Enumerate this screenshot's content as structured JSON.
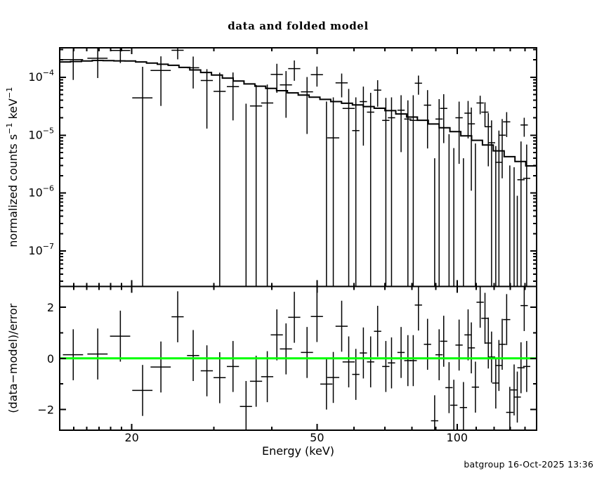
{
  "title": "data and folded model",
  "footer": "batgroup 16-Oct-2025 13:36",
  "colors": {
    "foreground": "#000000",
    "background": "#ffffff",
    "zero_line": "#00ff00"
  },
  "axes": {
    "x": {
      "label": "Energy (keV)",
      "scale": "log",
      "range": [
        14.0,
        148.2
      ],
      "major_ticks": [
        20,
        50,
        100
      ],
      "major_tick_labels": [
        "20",
        "50",
        "100"
      ],
      "minor_ticks": [
        15,
        16,
        17,
        18,
        19,
        30,
        40,
        60,
        70,
        80,
        90,
        110,
        120,
        130,
        140
      ]
    },
    "y_top": {
      "label_parts": [
        [
          "normalized counts s",
          false
        ],
        [
          "−1",
          true
        ],
        [
          " keV",
          false
        ],
        [
          "−1",
          true
        ]
      ],
      "scale": "log",
      "range_exponents": [
        -3.491,
        -7.612
      ],
      "major_tick_exponents": [
        -4,
        -5,
        -6,
        -7
      ],
      "tick_label_base": "10"
    },
    "y_bottom": {
      "label": "(data−model)/error",
      "scale": "linear",
      "range": [
        -2.82,
        2.82
      ],
      "ticks": [
        -2,
        -1,
        0,
        1,
        2
      ],
      "labeled_ticks": [
        -2,
        0,
        2
      ],
      "labeled_tick_text": [
        "−2",
        "0",
        "2"
      ]
    }
  },
  "chart_data": [
    {
      "type": "line",
      "name": "folded model histogram",
      "x_bin_edges_kev": [
        14.0,
        14.77,
        15.59,
        16.45,
        17.35,
        18.31,
        19.32,
        20.38,
        21.51,
        22.69,
        23.94,
        25.26,
        26.65,
        28.12,
        29.67,
        31.31,
        33.03,
        34.85,
        36.77,
        38.8,
        40.94,
        43.19,
        45.57,
        48.08,
        50.73,
        53.52,
        56.47,
        59.58,
        62.87,
        66.33,
        69.98,
        73.84,
        77.9,
        82.19,
        86.72,
        91.5,
        96.53,
        101.85,
        107.46,
        113.38,
        119.62,
        126.21,
        133.16,
        140.49,
        148.23
      ],
      "model_counts": [
        0.000184,
        0.000187,
        0.000191,
        0.000195,
        0.000194,
        0.000192,
        0.000191,
        0.000184,
        0.000176,
        0.000168,
        0.000161,
        0.000148,
        0.000134,
        0.000121,
        0.000109,
        9.68e-05,
        8.62e-05,
        7.68e-05,
        7.01e-05,
        6.41e-05,
        5.87e-05,
        5.38e-05,
        4.93e-05,
        4.52e-05,
        4.15e-05,
        3.81e-05,
        3.56e-05,
        3.33e-05,
        3.12e-05,
        2.92e-05,
        2.65e-05,
        2.33e-05,
        2.06e-05,
        1.81e-05,
        1.56e-05,
        1.34e-05,
        1.15e-05,
        9.72e-06,
        8.15e-06,
        6.76e-06,
        5.36e-06,
        4.25e-06,
        3.52e-06,
        2.95e-06
      ]
    },
    {
      "type": "scatter",
      "name": "spectrum data points with error bars",
      "halfwidth_rule": {
        "breaks_kev": [
          25,
          60
        ],
        "fracs": [
          0.05,
          0.03,
          0.018
        ]
      },
      "e_kev": [
        14.97,
        16.9,
        18.9,
        21.1,
        23.1,
        25.1,
        27.1,
        29.0,
        30.9,
        33.0,
        35.2,
        37.0,
        39.1,
        41.0,
        42.9,
        44.7,
        47.6,
        50.0,
        52.4,
        54.2,
        56.5,
        58.5,
        60.6,
        62.9,
        65.2,
        67.5,
        70.3,
        72.3,
        75.8,
        78.4,
        80.5,
        82.6,
        86.4,
        89.5,
        91.5,
        93.6,
        96.1,
        98.4,
        101.0,
        103.2,
        105.6,
        107.3,
        109.5,
        112.1,
        114.8,
        116.7,
        118.6,
        121.1,
        123.0,
        125.0,
        127.8,
        129.8,
        132.6,
        134.7,
        137.2,
        139.4,
        141.1
      ],
      "y": [
        0.000202,
        0.000213,
        0.000291,
        4.4e-05,
        0.000131,
        0.000293,
        0.000146,
        8.8e-05,
        5.7e-05,
        6.9e-05,
        null,
        3.2e-05,
        3.6e-05,
        0.000112,
        7.4e-05,
        0.000141,
        5.6e-05,
        0.000111,
        null,
        9e-06,
        8e-05,
        2.9e-05,
        1.2e-05,
        3.8e-05,
        2.5e-05,
        6e-05,
        1.8e-05,
        2e-05,
        2.7e-05,
        1.9e-05,
        1.8e-05,
        7.9e-05,
        3.3e-05,
        null,
        1.9e-05,
        2.9e-05,
        null,
        null,
        2e-05,
        null,
        2.4e-05,
        1.57e-05,
        null,
        3.6e-05,
        2.5e-05,
        1.4e-05,
        7.4e-06,
        null,
        3.4e-06,
        1e-05,
        1.7e-05,
        null,
        null,
        null,
        1.7e-06,
        1.5e-05,
        1.8e-06
      ],
      "y_lo": [
        9e-05,
        9.7e-05,
        0.000176,
        null,
        3.2e-05,
        0.000204,
        6.4e-05,
        1.3e-05,
        null,
        1.8e-05,
        null,
        null,
        null,
        5.4e-05,
        2e-05,
        8.7e-05,
        1.05e-05,
        6.9e-05,
        null,
        null,
        4.5e-05,
        null,
        null,
        6.6e-06,
        null,
        3.1e-05,
        null,
        null,
        5.1e-06,
        null,
        null,
        5e-05,
        5.9e-06,
        null,
        null,
        7.3e-06,
        null,
        null,
        3.2e-06,
        null,
        8.8e-06,
        1.1e-06,
        null,
        2.3e-05,
        1.4e-05,
        2.9e-06,
        null,
        null,
        null,
        1.8e-06,
        9.3e-06,
        null,
        null,
        null,
        null,
        9.4e-06,
        null
      ],
      "y_hi": [
        0.000313,
        0.000328,
        0.000405,
        0.000152,
        0.00023,
        0.000382,
        0.000228,
        0.000138,
        0.00012,
        0.000121,
        3.5e-05,
        7.4e-05,
        7.5e-05,
        0.000171,
        0.000128,
        0.000195,
        0.000101,
        0.000153,
        3.8e-05,
        4.5e-05,
        0.000116,
        6.3e-05,
        4.5e-05,
        6.9e-05,
        5.4e-05,
        8.9e-05,
        4.4e-05,
        4.5e-05,
        4.9e-05,
        4e-05,
        4.9e-05,
        0.000107,
        6e-05,
        4e-06,
        4.2e-05,
        5.1e-05,
        1.04e-05,
        6e-06,
        3.8e-05,
        4e-06,
        3.9e-05,
        3e-05,
        7.2e-06,
        4.8e-05,
        3.7e-05,
        2.4e-05,
        1.8e-05,
        6.5e-06,
        1.2e-05,
        1.9e-05,
        2.5e-05,
        3e-06,
        2.8e-06,
        9e-07,
        7.8e-06,
        2e-05,
        6.9e-06
      ]
    },
    {
      "type": "scatter",
      "name": "residuals (data-model)/error",
      "e_kev": [
        14.97,
        16.9,
        18.9,
        21.1,
        23.1,
        25.1,
        27.1,
        29.0,
        30.9,
        33.0,
        35.2,
        37.0,
        39.1,
        41.0,
        42.9,
        44.7,
        47.6,
        50.0,
        52.4,
        54.2,
        56.5,
        58.5,
        60.6,
        62.9,
        65.2,
        67.5,
        70.3,
        72.3,
        75.8,
        78.4,
        80.5,
        82.6,
        86.4,
        89.5,
        91.5,
        93.6,
        96.1,
        98.4,
        101.0,
        103.2,
        105.6,
        107.3,
        109.5,
        112.1,
        114.8,
        116.7,
        118.6,
        121.1,
        123.0,
        125.0,
        127.8,
        129.8,
        132.6,
        134.7,
        137.2,
        139.4,
        141.1
      ],
      "r": [
        0.14,
        0.17,
        0.87,
        -1.26,
        -0.34,
        1.63,
        0.11,
        -0.49,
        -0.76,
        -0.32,
        -1.89,
        -0.9,
        -0.72,
        0.92,
        0.37,
        1.61,
        0.23,
        1.64,
        -1.01,
        -0.75,
        1.26,
        -0.14,
        -0.63,
        0.21,
        -0.14,
        1.06,
        -0.32,
        -0.18,
        0.23,
        -0.09,
        -0.09,
        2.09,
        0.55,
        -2.45,
        0.14,
        0.67,
        -1.15,
        -1.84,
        0.52,
        -1.93,
        0.92,
        0.41,
        -1.13,
        2.2,
        1.57,
        0.6,
        0.05,
        -0.97,
        -0.28,
        0.55,
        1.52,
        -2.12,
        -1.24,
        -1.52,
        -0.37,
        2.07,
        -0.32
      ],
      "r_err": 1.0
    }
  ]
}
